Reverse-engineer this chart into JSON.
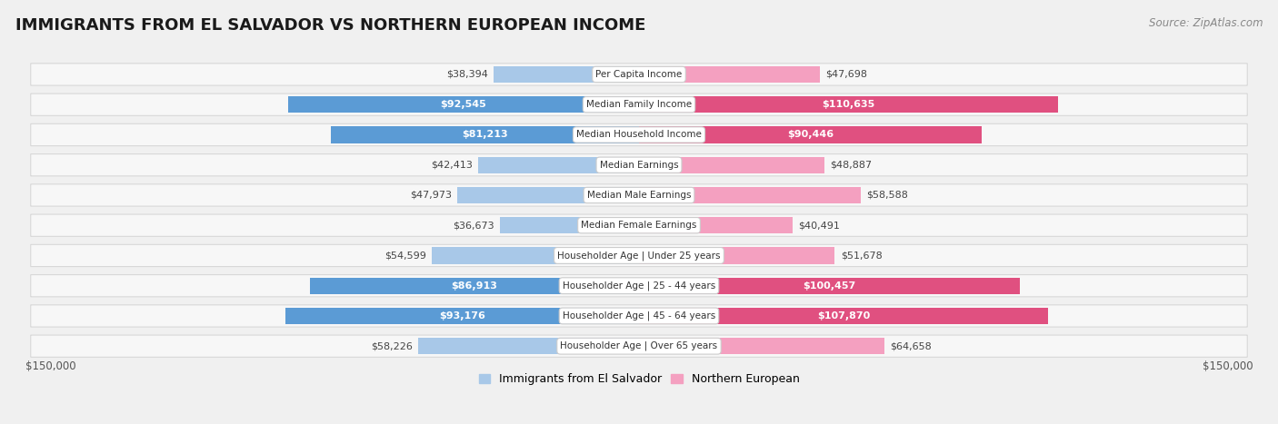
{
  "title": "IMMIGRANTS FROM EL SALVADOR VS NORTHERN EUROPEAN INCOME",
  "source": "Source: ZipAtlas.com",
  "categories": [
    "Per Capita Income",
    "Median Family Income",
    "Median Household Income",
    "Median Earnings",
    "Median Male Earnings",
    "Median Female Earnings",
    "Householder Age | Under 25 years",
    "Householder Age | 25 - 44 years",
    "Householder Age | 45 - 64 years",
    "Householder Age | Over 65 years"
  ],
  "el_salvador_values": [
    38394,
    92545,
    81213,
    42413,
    47973,
    36673,
    54599,
    86913,
    93176,
    58226
  ],
  "northern_european_values": [
    47698,
    110635,
    90446,
    48887,
    58588,
    40491,
    51678,
    100457,
    107870,
    64658
  ],
  "el_salvador_labels": [
    "$38,394",
    "$92,545",
    "$81,213",
    "$42,413",
    "$47,973",
    "$36,673",
    "$54,599",
    "$86,913",
    "$93,176",
    "$58,226"
  ],
  "northern_european_labels": [
    "$47,698",
    "$110,635",
    "$90,446",
    "$48,887",
    "$58,588",
    "$40,491",
    "$51,678",
    "$100,457",
    "$107,870",
    "$64,658"
  ],
  "el_salvador_color_light": "#a8c8e8",
  "el_salvador_color_dark": "#5b9bd5",
  "northern_european_color_light": "#f4a0c0",
  "northern_european_color_dark": "#e05080",
  "max_value": 150000,
  "bg_color": "#f0f0f0",
  "row_bg_color": "#f7f7f7",
  "row_border_color": "#d8d8d8",
  "legend_el_salvador": "Immigrants from El Salvador",
  "legend_northern_european": "Northern European",
  "x_label_left": "$150,000",
  "x_label_right": "$150,000",
  "es_label_threshold": 65000,
  "ne_label_threshold": 75000,
  "title_fontsize": 13,
  "source_fontsize": 8.5,
  "bar_label_fontsize": 8,
  "category_fontsize": 7.5
}
